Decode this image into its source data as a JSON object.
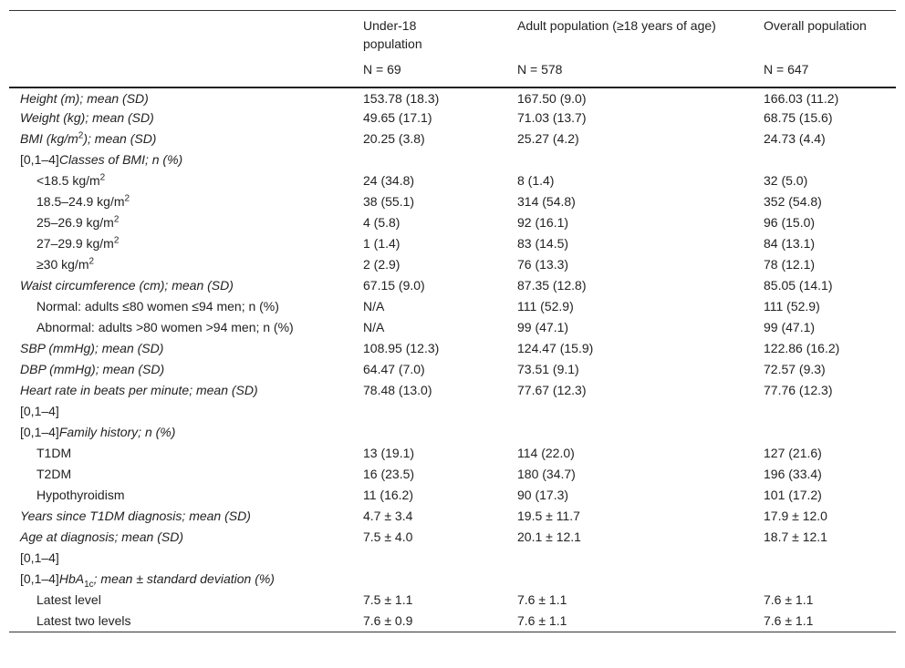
{
  "table": {
    "header": {
      "columns": [
        "Under-18 population",
        "Adult population (≥18 years of age)",
        "Overall population"
      ],
      "n": [
        "N = 69",
        "N = 578",
        "N = 647"
      ]
    },
    "rows": [
      {
        "label": "Height (m); mean (SD)",
        "values": [
          "153.78 (18.3)",
          "167.50 (9.0)",
          "166.03 (11.2)"
        ]
      },
      {
        "label": "Weight (kg); mean (SD)",
        "values": [
          "49.65 (17.1)",
          "71.03 (13.7)",
          "68.75 (15.6)"
        ]
      },
      {
        "label": [
          "BMI (kg/m",
          "2",
          "); mean (SD)"
        ],
        "values": [
          "20.25 (3.8)",
          "25.27 (4.2)",
          "24.73 (4.4)"
        ]
      },
      {
        "label": [
          "[0,1–4]",
          "Classes of BMI; n (%)"
        ]
      },
      {
        "label": [
          "<18.5 kg/m",
          "2"
        ],
        "values": [
          "24 (34.8)",
          "8 (1.4)",
          "32 (5.0)"
        ]
      },
      {
        "label": [
          "18.5–24.9 kg/m",
          "2"
        ],
        "values": [
          "38 (55.1)",
          "314 (54.8)",
          "352 (54.8)"
        ]
      },
      {
        "label": [
          "25–26.9 kg/m",
          "2"
        ],
        "values": [
          "4 (5.8)",
          "92 (16.1)",
          "96 (15.0)"
        ]
      },
      {
        "label": [
          "27–29.9 kg/m",
          "2"
        ],
        "values": [
          "1 (1.4)",
          "83 (14.5)",
          "84 (13.1)"
        ]
      },
      {
        "label": [
          "≥30 kg/m",
          "2"
        ],
        "values": [
          "2 (2.9)",
          "76 (13.3)",
          "78 (12.1)"
        ]
      },
      {
        "label": "Waist circumference (cm); mean (SD)",
        "values": [
          "67.15 (9.0)",
          "87.35 (12.8)",
          "85.05 (14.1)"
        ]
      },
      {
        "label": "Normal: adults ≤80 women ≤94 men; n (%)",
        "values": [
          "N/A",
          "111 (52.9)",
          "111 (52.9)"
        ]
      },
      {
        "label": "Abnormal: adults >80 women >94 men; n (%)",
        "values": [
          "N/A",
          "99 (47.1)",
          "99 (47.1)"
        ]
      },
      {
        "label": "SBP (mmHg); mean (SD)",
        "values": [
          "108.95 (12.3)",
          "124.47 (15.9)",
          "122.86 (16.2)"
        ]
      },
      {
        "label": "DBP (mmHg); mean (SD)",
        "values": [
          "64.47 (7.0)",
          "73.51 (9.1)",
          "72.57 (9.3)"
        ]
      },
      {
        "label": "Heart rate in beats per minute; mean (SD)",
        "values": [
          "78.48 (13.0)",
          "77.67 (12.3)",
          "77.76 (12.3)"
        ]
      },
      {
        "label": "[0,1–4]"
      },
      {
        "label": [
          "[0,1–4]",
          "Family history; n (%)"
        ]
      },
      {
        "label": "T1DM",
        "values": [
          "13 (19.1)",
          "114 (22.0)",
          "127 (21.6)"
        ]
      },
      {
        "label": "T2DM",
        "values": [
          "16 (23.5)",
          "180 (34.7)",
          "196 (33.4)"
        ]
      },
      {
        "label": "Hypothyroidism",
        "values": [
          "11 (16.2)",
          "90 (17.3)",
          "101 (17.2)"
        ]
      },
      {
        "label": "Years since T1DM diagnosis; mean (SD)",
        "values": [
          "4.7 ± 3.4",
          "19.5 ± 11.7",
          "17.9 ± 12.0"
        ]
      },
      {
        "label": "Age at diagnosis; mean (SD)",
        "values": [
          "7.5 ± 4.0",
          "20.1 ± 12.1",
          "18.7 ± 12.1"
        ]
      },
      {
        "label": "[0,1–4]"
      },
      {
        "label": [
          "[0,1–4]",
          "HbA",
          "1c",
          "; mean ± standard deviation (%)"
        ]
      },
      {
        "label": "Latest level",
        "values": [
          "7.5 ± 1.1",
          "7.6 ± 1.1",
          "7.6 ± 1.1"
        ]
      },
      {
        "label": "Latest two levels",
        "values": [
          "7.6 ± 0.9",
          "7.6 ± 1.1",
          "7.6 ± 1.1"
        ]
      }
    ]
  }
}
